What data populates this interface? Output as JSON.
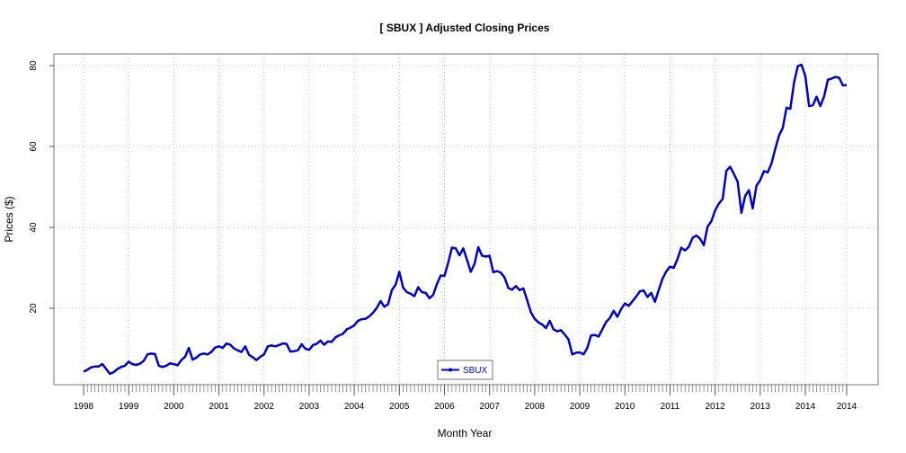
{
  "chart_data": {
    "type": "line",
    "title": "[ SBUX ] Adjusted Closing Prices",
    "xlabel": "Month Year",
    "ylabel": "Prices ($)",
    "x_ticks": [
      "1998",
      "1999",
      "2000",
      "2001",
      "2002",
      "2003",
      "2004",
      "2005",
      "2006",
      "2007",
      "2008",
      "2009",
      "2010",
      "2011",
      "2012",
      "2013",
      "2014",
      "2014"
    ],
    "y_ticks": [
      "20",
      "40",
      "60",
      "80"
    ],
    "ylim": [
      2,
      82
    ],
    "grid": true,
    "legend_position": "bottom-center",
    "colors": {
      "series": "#0000cc",
      "grid": "#c8c8c8",
      "axis": "#555555"
    },
    "series": [
      {
        "name": "SBUX",
        "x": [
          "1998-01",
          "1998-02",
          "1998-03",
          "1998-04",
          "1998-05",
          "1998-06",
          "1998-07",
          "1998-08",
          "1998-09",
          "1998-10",
          "1998-11",
          "1998-12",
          "1999-01",
          "1999-02",
          "1999-03",
          "1999-04",
          "1999-05",
          "1999-06",
          "1999-07",
          "1999-08",
          "1999-09",
          "1999-10",
          "1999-11",
          "1999-12",
          "2000-01",
          "2000-02",
          "2000-03",
          "2000-04",
          "2000-05",
          "2000-06",
          "2000-07",
          "2000-08",
          "2000-09",
          "2000-10",
          "2000-11",
          "2000-12",
          "2001-01",
          "2001-02",
          "2001-03",
          "2001-04",
          "2001-05",
          "2001-06",
          "2001-07",
          "2001-08",
          "2001-09",
          "2001-10",
          "2001-11",
          "2001-12",
          "2002-01",
          "2002-02",
          "2002-03",
          "2002-04",
          "2002-05",
          "2002-06",
          "2002-07",
          "2002-08",
          "2002-09",
          "2002-10",
          "2002-11",
          "2002-12",
          "2003-01",
          "2003-02",
          "2003-03",
          "2003-04",
          "2003-05",
          "2003-06",
          "2003-07",
          "2003-08",
          "2003-09",
          "2003-10",
          "2003-11",
          "2003-12",
          "2004-01",
          "2004-02",
          "2004-03",
          "2004-04",
          "2004-05",
          "2004-06",
          "2004-07",
          "2004-08",
          "2004-09",
          "2004-10",
          "2004-11",
          "2004-12",
          "2005-01",
          "2005-02",
          "2005-03",
          "2005-04",
          "2005-05",
          "2005-06",
          "2005-07",
          "2005-08",
          "2005-09",
          "2005-10",
          "2005-11",
          "2005-12",
          "2006-01",
          "2006-02",
          "2006-03",
          "2006-04",
          "2006-05",
          "2006-06",
          "2006-07",
          "2006-08",
          "2006-09",
          "2006-10",
          "2006-11",
          "2006-12",
          "2007-01",
          "2007-02",
          "2007-03",
          "2007-04",
          "2007-05",
          "2007-06",
          "2007-07",
          "2007-08",
          "2007-09",
          "2007-10",
          "2007-11",
          "2007-12",
          "2008-01",
          "2008-02",
          "2008-03",
          "2008-04",
          "2008-05",
          "2008-06",
          "2008-07",
          "2008-08",
          "2008-09",
          "2008-10",
          "2008-11",
          "2008-12",
          "2009-01",
          "2009-02",
          "2009-03",
          "2009-04",
          "2009-05",
          "2009-06",
          "2009-07",
          "2009-08",
          "2009-09",
          "2009-10",
          "2009-11",
          "2009-12",
          "2010-01",
          "2010-02",
          "2010-03",
          "2010-04",
          "2010-05",
          "2010-06",
          "2010-07",
          "2010-08",
          "2010-09",
          "2010-10",
          "2010-11",
          "2010-12",
          "2011-01",
          "2011-02",
          "2011-03",
          "2011-04",
          "2011-05",
          "2011-06",
          "2011-07",
          "2011-08",
          "2011-09",
          "2011-10",
          "2011-11",
          "2011-12",
          "2012-01",
          "2012-02",
          "2012-03",
          "2012-04",
          "2012-05",
          "2012-06",
          "2012-07",
          "2012-08",
          "2012-09",
          "2012-10",
          "2012-11",
          "2012-12",
          "2013-01",
          "2013-02",
          "2013-03",
          "2013-04",
          "2013-05",
          "2013-06",
          "2013-07",
          "2013-08",
          "2013-09",
          "2013-10",
          "2013-11",
          "2013-12",
          "2014-01",
          "2014-02",
          "2014-03",
          "2014-04",
          "2014-05",
          "2014-06",
          "2014-07",
          "2014-08",
          "2014-09",
          "2014-10",
          "2014-11",
          "2014-12"
        ],
        "values": [
          4.3,
          4.8,
          5.4,
          5.6,
          5.6,
          6.2,
          5.0,
          3.8,
          4.2,
          5.0,
          5.5,
          5.8,
          6.8,
          6.2,
          6.0,
          6.3,
          7.0,
          8.6,
          8.8,
          8.7,
          5.8,
          5.5,
          5.8,
          6.4,
          6.2,
          5.9,
          7.2,
          8.0,
          10.2,
          7.3,
          7.8,
          8.6,
          8.8,
          8.6,
          9.2,
          10.3,
          10.6,
          10.2,
          11.3,
          11.0,
          10.1,
          9.6,
          9.2,
          10.6,
          8.5,
          7.9,
          7.2,
          8.0,
          8.6,
          10.6,
          10.8,
          10.6,
          10.9,
          11.3,
          11.2,
          9.3,
          9.4,
          9.6,
          11.1,
          10.0,
          9.7,
          10.9,
          11.2,
          12.0,
          11.0,
          11.8,
          11.7,
          12.8,
          13.3,
          13.7,
          14.8,
          15.2,
          15.8,
          16.9,
          17.3,
          17.4,
          18.0,
          18.9,
          20.1,
          21.8,
          20.4,
          21.0,
          24.5,
          25.8,
          29.0,
          25.1,
          24.0,
          23.6,
          23.0,
          25.2,
          24.0,
          23.8,
          22.5,
          23.3,
          26.0,
          28.1,
          28.0,
          31.3,
          35.0,
          34.8,
          33.1,
          34.8,
          32.0,
          29.0,
          31.0,
          35.1,
          33.0,
          32.8,
          33.0,
          28.9,
          29.2,
          28.8,
          27.6,
          25.0,
          24.6,
          25.5,
          24.5,
          24.9,
          22.0,
          19.0,
          17.4,
          16.5,
          16.0,
          15.1,
          16.9,
          14.8,
          14.3,
          14.6,
          13.5,
          12.3,
          8.6,
          9.0,
          9.1,
          8.6,
          10.2,
          13.3,
          13.4,
          13.0,
          14.8,
          16.6,
          17.6,
          19.4,
          17.9,
          19.8,
          21.2,
          20.6,
          21.7,
          22.9,
          24.2,
          24.4,
          22.8,
          23.8,
          21.6,
          24.5,
          27.3,
          29.1,
          30.3,
          30.0,
          32.2,
          35.0,
          34.3,
          35.2,
          37.4,
          38.0,
          37.2,
          35.6,
          40.2,
          41.5,
          44.2,
          45.9,
          47.0,
          54.0,
          55.0,
          53.2,
          51.3,
          43.6,
          47.8,
          49.2,
          44.7,
          50.3,
          51.7,
          53.9,
          53.6,
          55.8,
          59.4,
          62.7,
          64.6,
          69.6,
          69.3,
          75.8,
          79.9,
          80.2,
          77.4,
          70.0,
          70.2,
          72.3,
          70.0,
          72.4,
          76.5,
          76.8,
          77.2,
          77.0,
          75.1,
          75.2
        ]
      }
    ]
  }
}
